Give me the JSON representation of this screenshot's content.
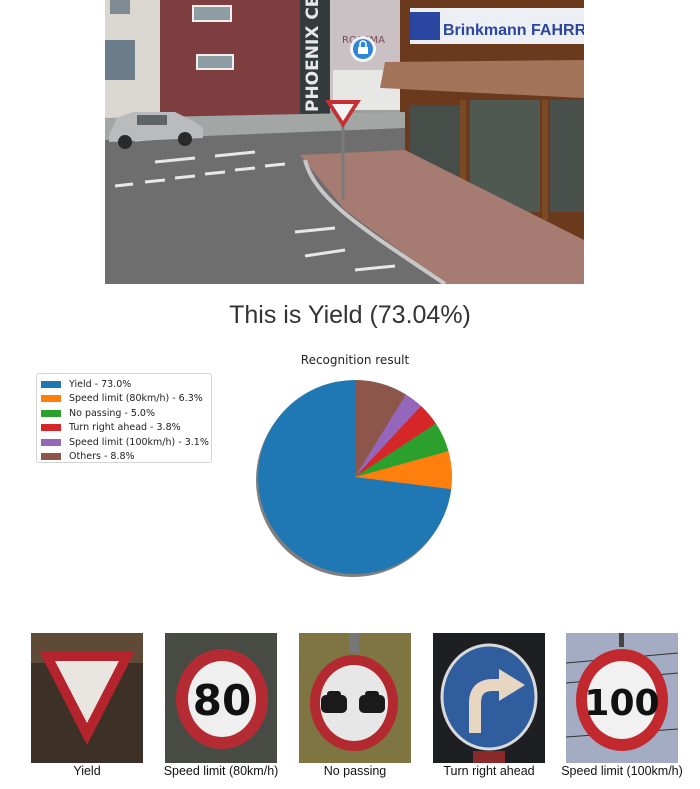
{
  "result": {
    "prefix": "This is ",
    "label": "Yield",
    "confidence_text": "(73.04%)",
    "headline": "This is Yield (73.04%)"
  },
  "photo": {
    "sign_text_top": "PHOENIX CE",
    "shop_name": "Brinkmann FAHRRÄD",
    "store_sign": "ROSSMA"
  },
  "chart_data": {
    "type": "pie",
    "title": "Recognition result",
    "labels": [
      "Yield",
      "Speed limit (80km/h)",
      "No passing",
      "Turn right ahead",
      "Speed limit (100km/h)",
      "Others"
    ],
    "values": [
      73.0,
      6.3,
      5.0,
      3.8,
      3.1,
      8.8
    ],
    "legend_entries": [
      "Yield - 73.0%",
      "Speed limit (80km/h) - 6.3%",
      "No passing - 5.0%",
      "Turn right ahead - 3.8%",
      "Speed limit (100km/h) - 3.1%",
      "Others - 8.8%"
    ],
    "colors": [
      "#1f77b4",
      "#ff7f0e",
      "#2ca02c",
      "#d62728",
      "#9467bd",
      "#8c564b"
    ],
    "legend_position": "upper-left",
    "shadow": true,
    "start_angle_deg": 90,
    "direction": "counterclockwise"
  },
  "candidates": [
    {
      "label": "Yield",
      "sign": "yield-triangle",
      "text": ""
    },
    {
      "label": "Speed limit (80km/h)",
      "sign": "speed-limit-circle",
      "text": "80"
    },
    {
      "label": "No passing",
      "sign": "no-passing-circle",
      "text": ""
    },
    {
      "label": "Turn right ahead",
      "sign": "turn-right-ahead-circle",
      "text": ""
    },
    {
      "label": "Speed limit (100km/h)",
      "sign": "speed-limit-circle",
      "text": "100"
    }
  ]
}
